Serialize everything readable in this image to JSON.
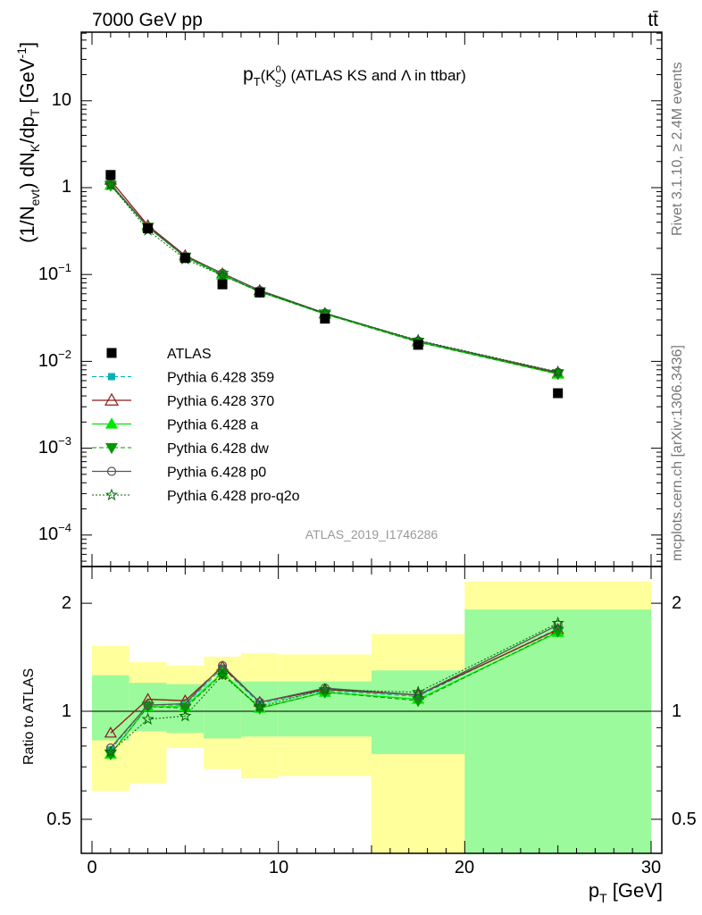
{
  "header": {
    "left": "7000 GeV pp",
    "right": "tt̄",
    "title_main": "p",
    "title_sub1": "T",
    "title_mid": "(K",
    "title_sup": "0",
    "title_sub2": "S",
    "title_rest": ") (ATLAS KS and Λ in ttbar)",
    "rivet_label": "Rivet 3.1.10, ≥ 2.4M events",
    "mcplots_label": "mcplots.cern.ch [arXiv:1306.3436]",
    "analysis_id": "ATLAS_2019_I1746286"
  },
  "axes": {
    "ylabel_top": "(1/N_evt) dN_K/dp_T [GeV^-1]",
    "ylabel_bottom": "Ratio to ATLAS",
    "xlabel": "p_T [GeV]",
    "top_yticks": [
      "10",
      "1",
      "10^-1",
      "10^-2",
      "10^-3",
      "10^-4"
    ],
    "ratio_yticks": [
      "2",
      "1",
      "0.5"
    ],
    "xticks": [
      "0",
      "10",
      "20",
      "30"
    ]
  },
  "colors": {
    "band_inner": "#9bfa9b",
    "band_outer": "#ffff9b",
    "p359": "#00b3b3",
    "p370": "#8b1a1a",
    "pa": "#00e600",
    "pdw": "#009900",
    "pp0": "#555555",
    "pq2o": "#006600"
  },
  "chart_data": {
    "type": "scatter",
    "x_range": [
      0,
      30
    ],
    "main_y_range_log": [
      3e-05,
      60
    ],
    "ratio_y_range_log": [
      0.35,
      2.3
    ],
    "xlog": false,
    "ylog": true,
    "bins": [
      [
        0,
        2
      ],
      [
        2,
        4
      ],
      [
        4,
        6
      ],
      [
        6,
        8
      ],
      [
        8,
        10
      ],
      [
        10,
        15
      ],
      [
        15,
        20
      ],
      [
        20,
        30
      ]
    ],
    "x": [
      1,
      3,
      5,
      7,
      9,
      12.5,
      17.5,
      25
    ],
    "atlas": [
      1.4,
      0.34,
      0.155,
      0.077,
      0.062,
      0.031,
      0.0155,
      0.0043
    ],
    "ratio_band_inner": [
      [
        0.83,
        1.26
      ],
      [
        0.88,
        1.2
      ],
      [
        0.87,
        1.19
      ],
      [
        0.84,
        1.22
      ],
      [
        0.85,
        1.21
      ],
      [
        0.85,
        1.21
      ],
      [
        0.76,
        1.3
      ],
      [
        0.35,
        1.92
      ]
    ],
    "ratio_band_outer": [
      [
        0.6,
        1.52
      ],
      [
        0.63,
        1.37
      ],
      [
        0.79,
        1.34
      ],
      [
        0.69,
        1.42
      ],
      [
        0.65,
        1.45
      ],
      [
        0.66,
        1.44
      ],
      [
        0.38,
        1.64
      ],
      [
        0.35,
        2.3
      ]
    ],
    "series": [
      {
        "name": "Pythia 6.428 359",
        "ratios": [
          0.78,
          1.04,
          1.04,
          1.32,
          1.05,
          1.14,
          1.1,
          1.7
        ]
      },
      {
        "name": "Pythia 6.428 370",
        "ratios": [
          0.87,
          1.08,
          1.07,
          1.33,
          1.06,
          1.15,
          1.11,
          1.69
        ]
      },
      {
        "name": "Pythia 6.428 a",
        "ratios": [
          0.76,
          1.03,
          1.03,
          1.28,
          1.02,
          1.13,
          1.08,
          1.66
        ]
      },
      {
        "name": "Pythia 6.428 dw",
        "ratios": [
          0.76,
          1.03,
          1.02,
          1.27,
          1.02,
          1.13,
          1.07,
          1.67
        ]
      },
      {
        "name": "Pythia 6.428 p0",
        "ratios": [
          0.79,
          1.04,
          1.05,
          1.34,
          1.06,
          1.16,
          1.11,
          1.74
        ]
      },
      {
        "name": "Pythia 6.428 pro-q2o",
        "ratios": [
          0.77,
          0.95,
          0.97,
          1.26,
          1.03,
          1.15,
          1.13,
          1.76
        ]
      }
    ],
    "legend_labels": [
      "ATLAS",
      "Pythia 6.428 359",
      "Pythia 6.428 370",
      "Pythia 6.428 a",
      "Pythia 6.428 dw",
      "Pythia 6.428 p0",
      "Pythia 6.428 pro-q2o"
    ]
  }
}
